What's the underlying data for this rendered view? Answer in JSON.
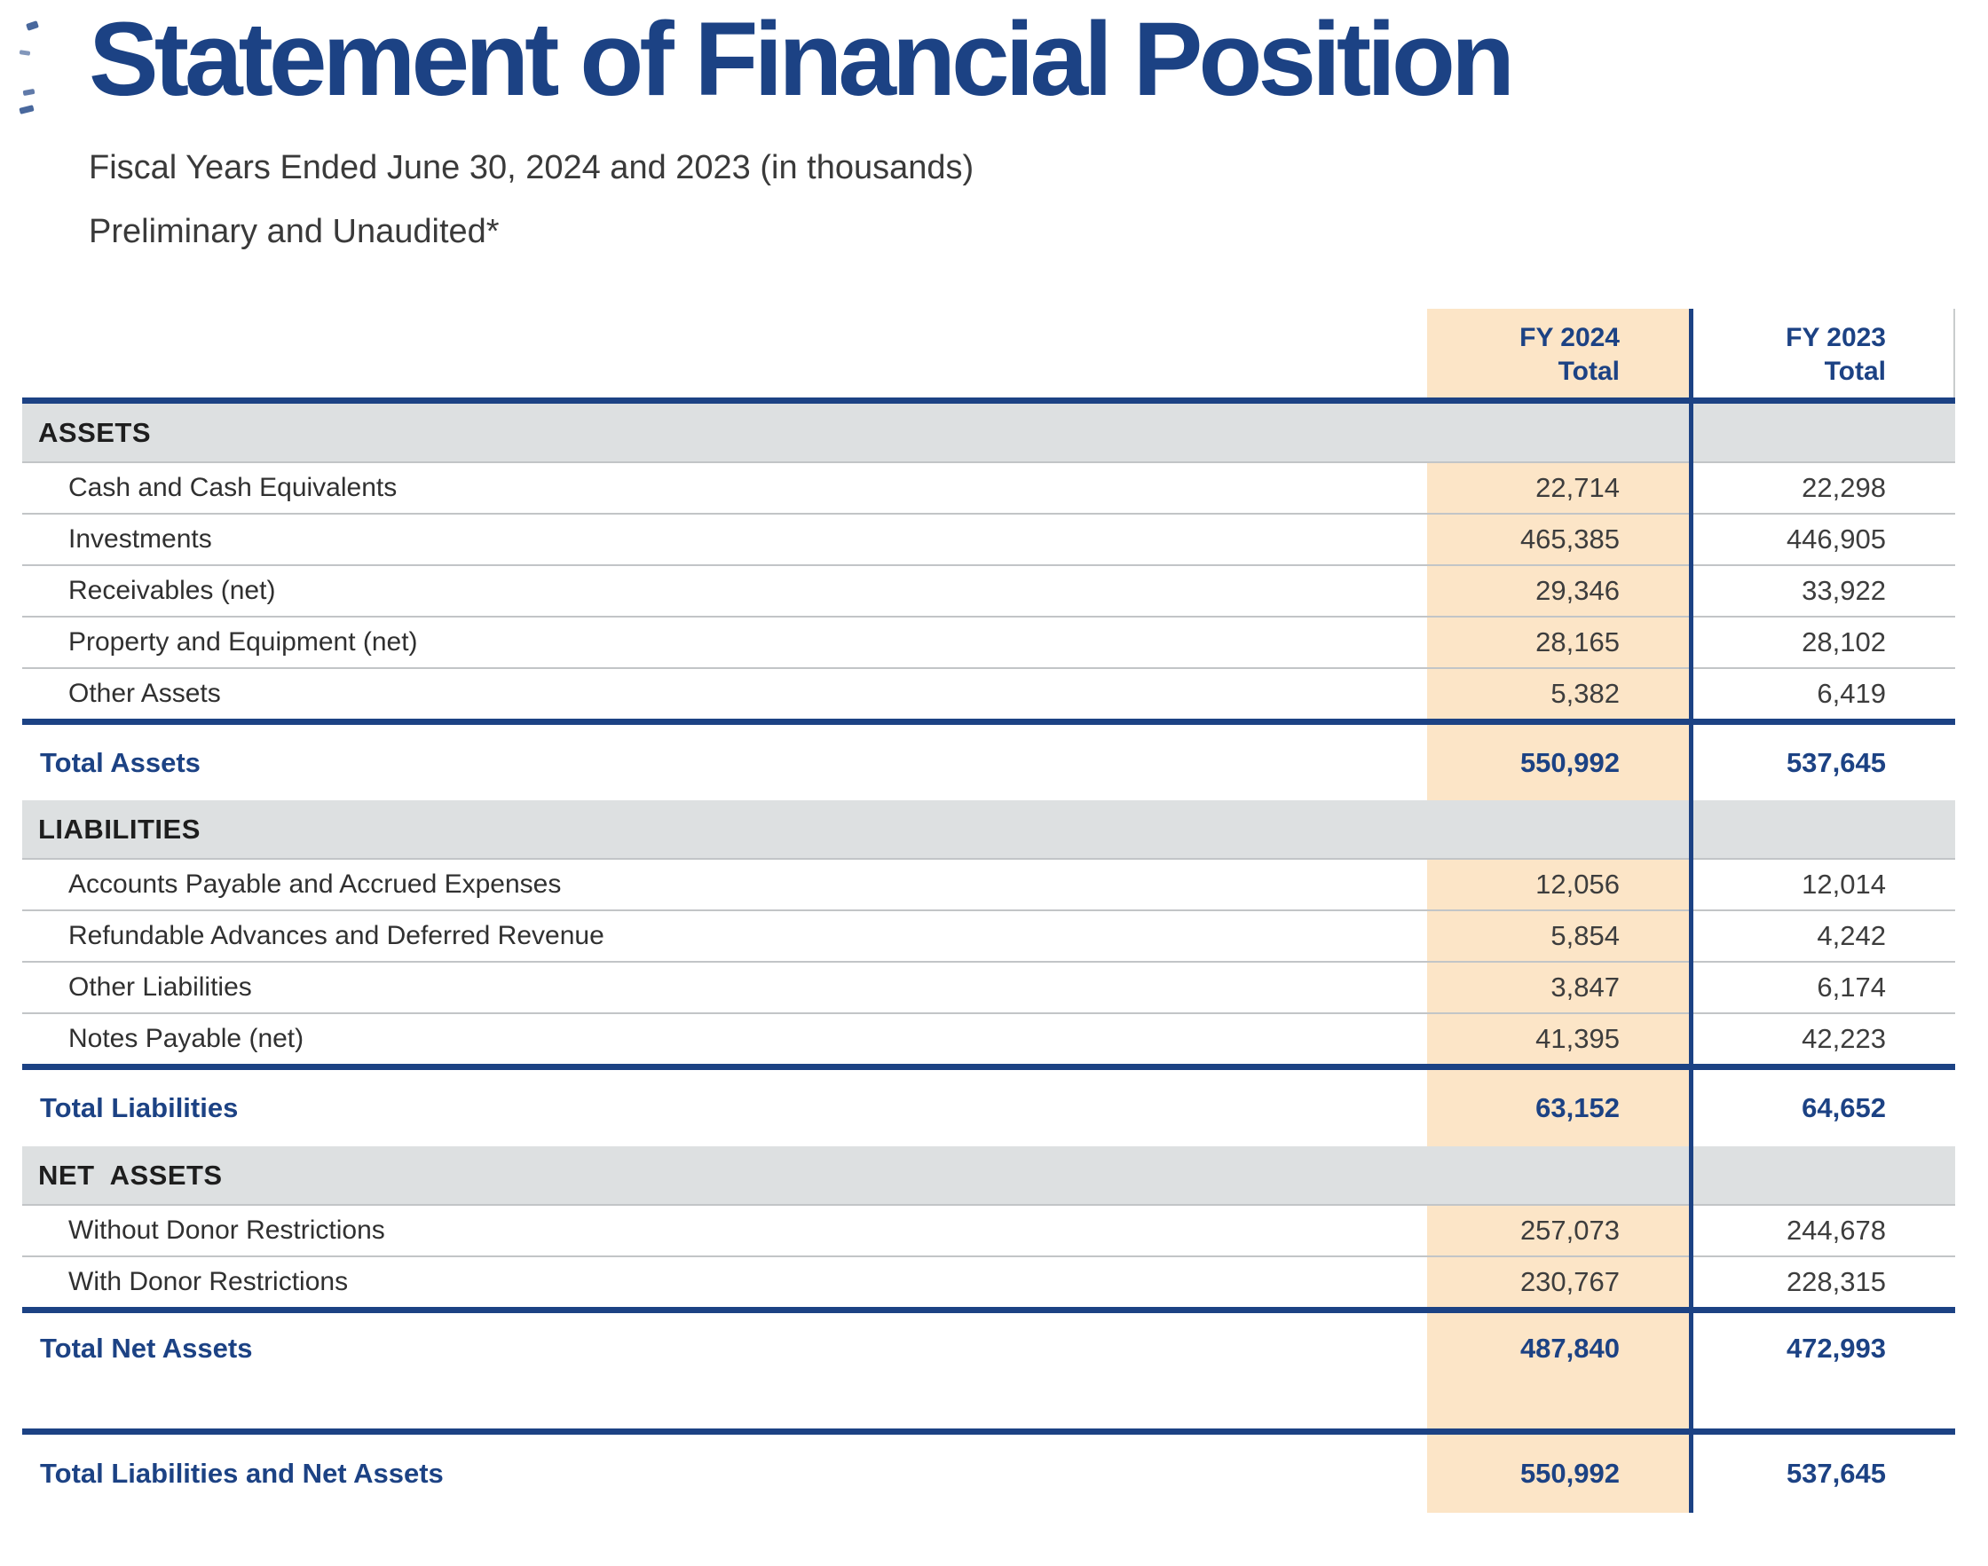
{
  "page": {
    "title": "Statement of Financial Position",
    "subtitle_line1": "Fiscal Years Ended June 30, 2024 and 2023 (in thousands)",
    "subtitle_line2": "Preliminary and Unaudited*"
  },
  "table": {
    "columns": {
      "fy2024": {
        "line1": "FY 2024",
        "line2": "Total"
      },
      "fy2023": {
        "line1": "FY 2023",
        "line2": "Total"
      }
    },
    "sections": [
      {
        "label": "ASSETS",
        "rows": [
          {
            "label": "Cash and Cash Equivalents",
            "fy2024": "22,714",
            "fy2023": "22,298"
          },
          {
            "label": "Investments",
            "fy2024": "465,385",
            "fy2023": "446,905"
          },
          {
            "label": "Receivables (net)",
            "fy2024": "29,346",
            "fy2023": "33,922"
          },
          {
            "label": "Property and Equipment (net)",
            "fy2024": "28,165",
            "fy2023": "28,102"
          },
          {
            "label": "Other Assets",
            "fy2024": "5,382",
            "fy2023": "6,419"
          }
        ],
        "total": {
          "label": "Total Assets",
          "fy2024": "550,992",
          "fy2023": "537,645"
        }
      },
      {
        "label": "LIABILITIES",
        "rows": [
          {
            "label": "Accounts Payable and Accrued Expenses",
            "fy2024": "12,056",
            "fy2023": "12,014"
          },
          {
            "label": "Refundable Advances and Deferred Revenue",
            "fy2024": "5,854",
            "fy2023": "4,242"
          },
          {
            "label": "Other Liabilities",
            "fy2024": "3,847",
            "fy2023": "6,174"
          },
          {
            "label": "Notes Payable (net)",
            "fy2024": "41,395",
            "fy2023": "42,223"
          }
        ],
        "total": {
          "label": "Total Liabilities",
          "fy2024": "63,152",
          "fy2023": "64,652"
        }
      },
      {
        "label": "NET  ASSETS",
        "rows": [
          {
            "label": "Without Donor Restrictions",
            "fy2024": "257,073",
            "fy2023": "244,678"
          },
          {
            "label": "With Donor Restrictions",
            "fy2024": "230,767",
            "fy2023": "228,315"
          }
        ],
        "total": {
          "label": "Total Net Assets",
          "fy2024": "487,840",
          "fy2023": "472,993"
        }
      }
    ],
    "grand_total": {
      "label": "Total Liabilities and Net Assets",
      "fy2024": "550,992",
      "fy2023": "537,645"
    }
  },
  "colors": {
    "navy": "#1c4284",
    "fy2024_highlight": "#fce5c7",
    "section_band": "#dde0e1",
    "row_divider": "#c2c5c7"
  }
}
